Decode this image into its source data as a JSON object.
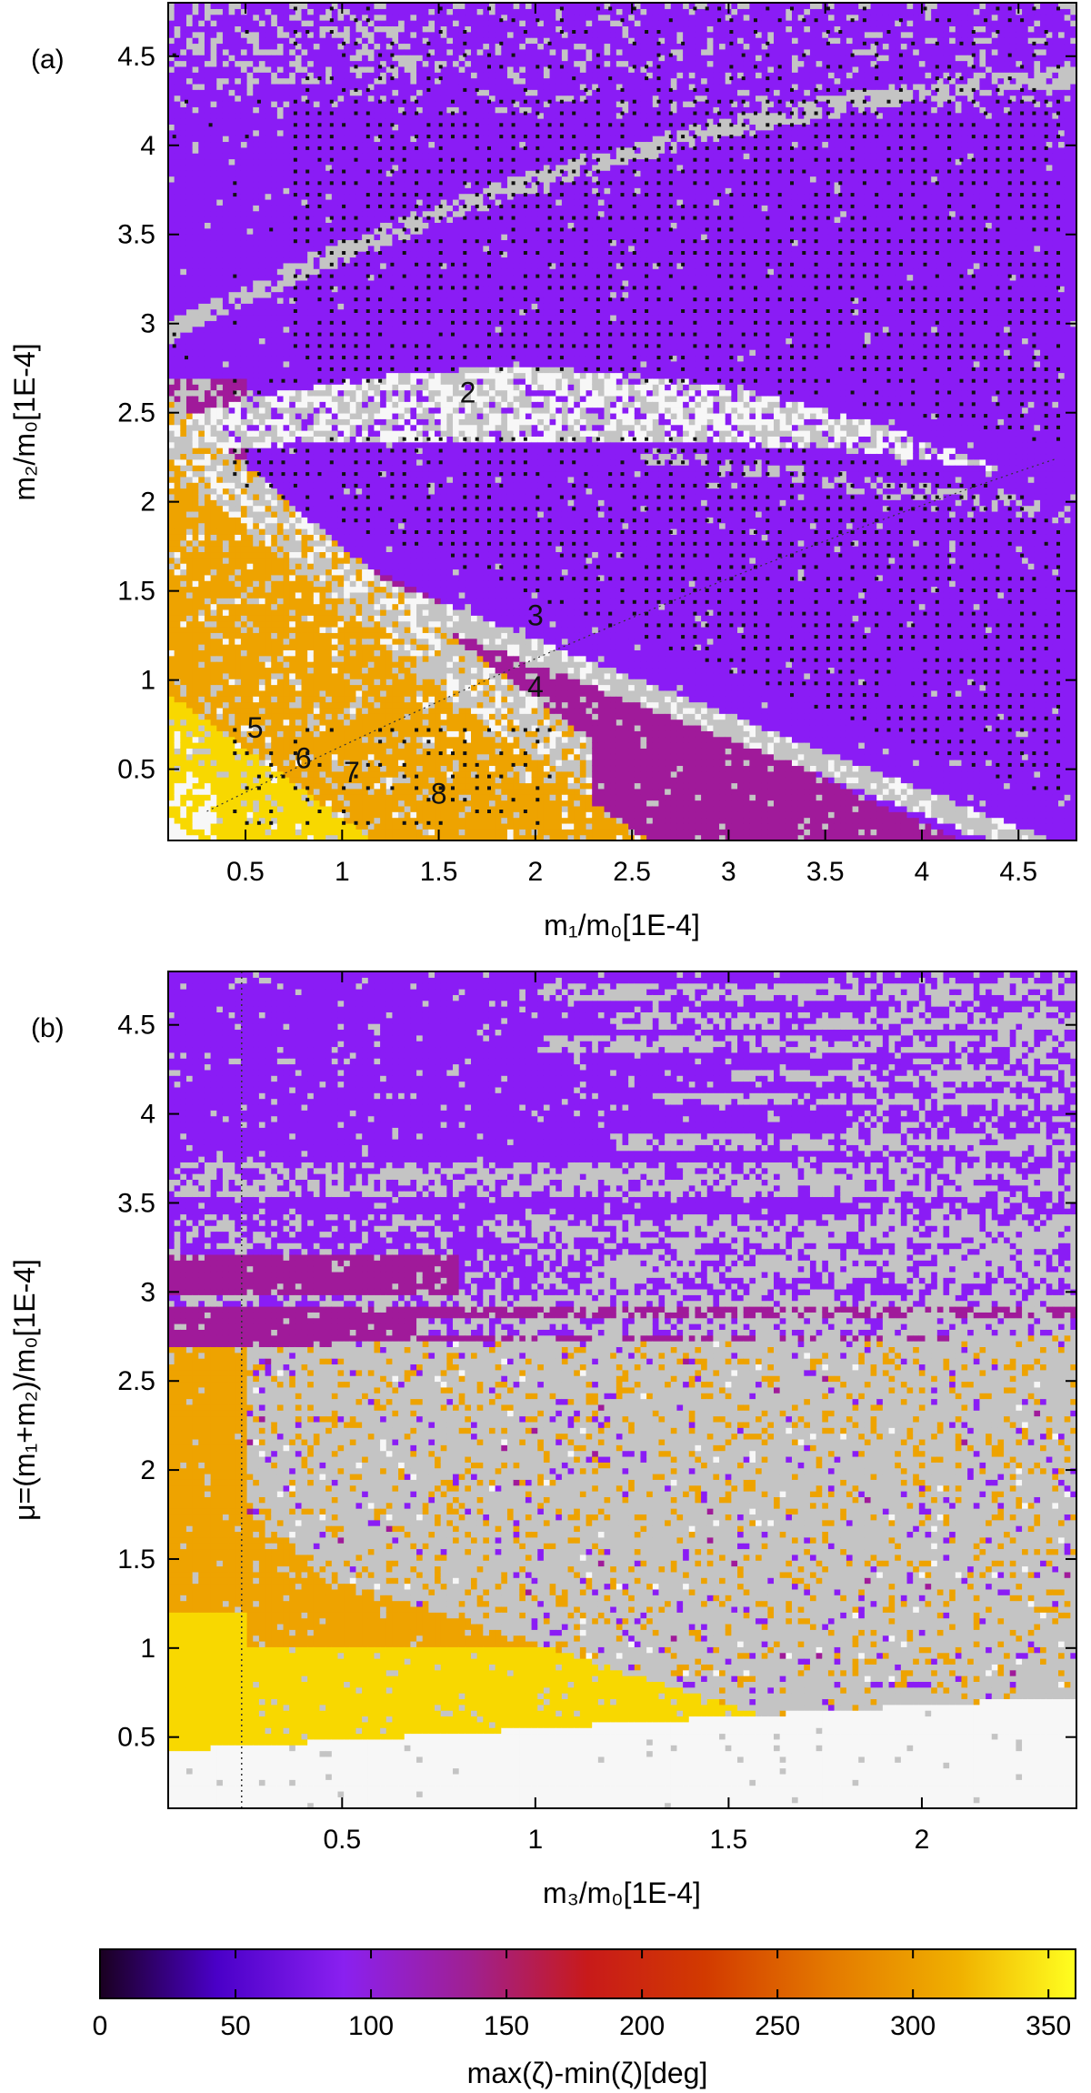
{
  "chart_data": [
    {
      "type": "heatmap",
      "panel_label": "(a)",
      "xlabel": "m₁/m₀[1E-4]",
      "ylabel": "m₂/m₀[1E-4]",
      "xlim": [
        0.1,
        4.8
      ],
      "ylim": [
        0.1,
        4.8
      ],
      "x_ticks": [
        0.5,
        1,
        1.5,
        2,
        2.5,
        3,
        3.5,
        4,
        4.5
      ],
      "y_ticks": [
        0.5,
        1,
        1.5,
        2,
        2.5,
        3,
        3.5,
        4,
        4.5
      ],
      "x_tick_labels": [
        "0.5",
        "1",
        "1.5",
        "2",
        "2.5",
        "3",
        "3.5",
        "4",
        "4.5"
      ],
      "y_tick_labels": [
        "0.5",
        "1",
        "1.5",
        "2",
        "2.5",
        "3",
        "3.5",
        "4",
        "4.5"
      ],
      "region_labels": [
        {
          "text": "2",
          "x": 1.65,
          "y": 2.6
        },
        {
          "text": "3",
          "x": 2.0,
          "y": 1.35
        },
        {
          "text": "4",
          "x": 2.0,
          "y": 0.95
        },
        {
          "text": "5",
          "x": 0.55,
          "y": 0.72
        },
        {
          "text": "6",
          "x": 0.8,
          "y": 0.55
        },
        {
          "text": "7",
          "x": 1.05,
          "y": 0.47
        },
        {
          "text": "8",
          "x": 1.5,
          "y": 0.35
        }
      ],
      "colorbar_label": "max(ζ)-min(ζ)[deg]",
      "value_range": [
        0,
        360
      ]
    },
    {
      "type": "heatmap",
      "panel_label": "(b)",
      "xlabel": "m₃/m₀[1E-4]",
      "ylabel": "μ=(m₁+m₂)/m₀[1E-4]",
      "xlim": [
        0.05,
        2.4
      ],
      "ylim": [
        0.1,
        4.8
      ],
      "x_ticks": [
        0.5,
        1,
        1.5,
        2
      ],
      "y_ticks": [
        0.5,
        1,
        1.5,
        2,
        2.5,
        3,
        3.5,
        4,
        4.5
      ],
      "x_tick_labels": [
        "0.5",
        "1",
        "1.5",
        "2"
      ],
      "y_tick_labels": [
        "0.5",
        "1",
        "1.5",
        "2",
        "2.5",
        "3",
        "3.5",
        "4",
        "4.5"
      ],
      "reference_line_x": 0.24,
      "colorbar_label": "max(ζ)-min(ζ)[deg]",
      "value_range": [
        0,
        360
      ]
    }
  ],
  "colorbar": {
    "ticks": [
      0,
      50,
      100,
      150,
      200,
      250,
      300,
      350
    ],
    "tick_labels": [
      "0",
      "50",
      "100",
      "150",
      "200",
      "250",
      "300",
      "350"
    ],
    "range": [
      0,
      360
    ],
    "label": "max(ζ)-min(ζ)[deg]"
  },
  "colors": {
    "purple": "#8a1cf5",
    "magenta": "#a01a9a",
    "gray": "#c4c4c4",
    "white": "#f7f7f7",
    "orange": "#eea300",
    "yellow": "#f8d800",
    "dot": "#111111"
  }
}
